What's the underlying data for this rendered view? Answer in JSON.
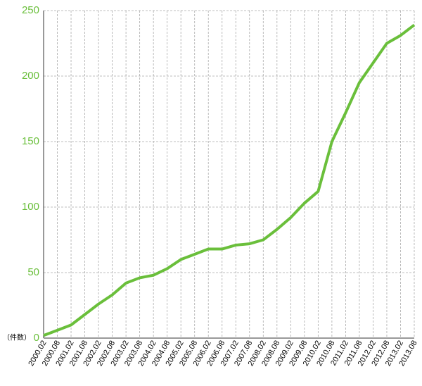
{
  "chart_data": {
    "type": "line",
    "y_unit_label": "（件数）",
    "categories": [
      "2000.02",
      "2000.08",
      "2001.02",
      "2001.08",
      "2002.02",
      "2002.08",
      "2003.02",
      "2003.08",
      "2004.02",
      "2004.08",
      "2005.02",
      "2005.08",
      "2006.02",
      "2006.08",
      "2007.02",
      "2007.08",
      "2008.02",
      "2008.08",
      "2009.02",
      "2009.08",
      "2010.02",
      "2010.08",
      "2011.02",
      "2011.08",
      "2012.02",
      "2012.08",
      "2013.02",
      "2013.08"
    ],
    "values": [
      2,
      6,
      10,
      18,
      26,
      33,
      42,
      46,
      48,
      53,
      60,
      64,
      68,
      68,
      71,
      72,
      75,
      83,
      92,
      103,
      112,
      150,
      172,
      195,
      210,
      225,
      231,
      239
    ],
    "color": "#6abf3b",
    "ylim": [
      0,
      250
    ],
    "yticks": [
      0,
      50,
      100,
      150,
      200,
      250
    ],
    "grid": true
  }
}
